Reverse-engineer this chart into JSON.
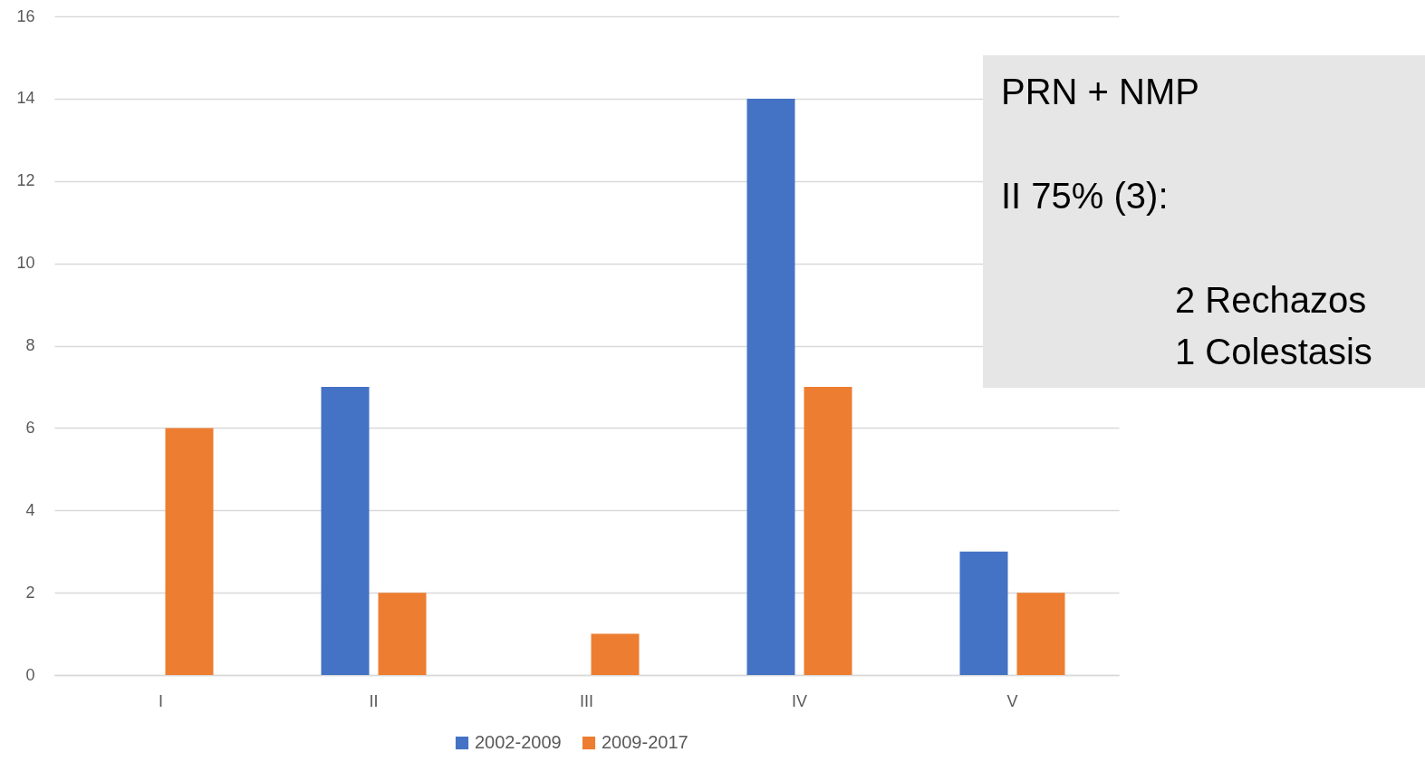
{
  "chart_data": {
    "type": "bar",
    "categories": [
      "I",
      "II",
      "III",
      "IV",
      "V"
    ],
    "series": [
      {
        "name": "2002-2009",
        "color": "#4472c4",
        "values": [
          0,
          7,
          0,
          14,
          3
        ]
      },
      {
        "name": "2009-2017",
        "color": "#ed7d31",
        "values": [
          6,
          2,
          1,
          7,
          2
        ]
      }
    ],
    "ylim": [
      0,
      16
    ],
    "yticks": [
      0,
      2,
      4,
      6,
      8,
      10,
      12,
      14,
      16
    ],
    "grid": "y",
    "legend": "bottom",
    "annotations": [
      "PRN + NMP",
      "II 75% (3):",
      "2 Rechazos",
      "1 Colestasis"
    ]
  }
}
